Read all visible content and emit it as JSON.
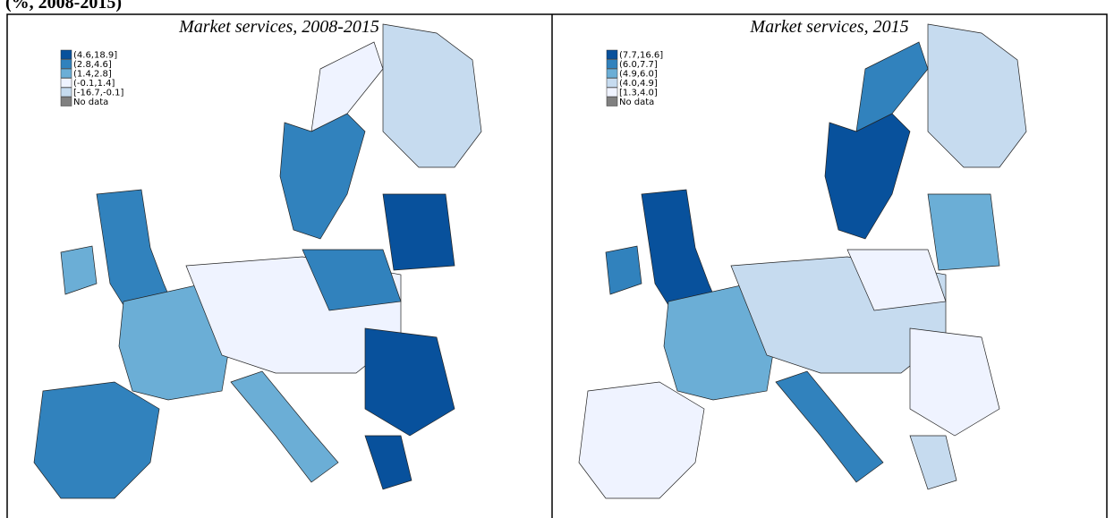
{
  "header": {
    "text": "(%, 2008-2015)"
  },
  "panels": [
    {
      "title": "Market services, 2008-2015",
      "legend": [
        {
          "label": "(4.6,18.9]",
          "color": "#08519c"
        },
        {
          "label": "(2.8,4.6]",
          "color": "#3182bd"
        },
        {
          "label": "(1.4,2.8]",
          "color": "#6baed6"
        },
        {
          "label": "(-0.1,1.4]",
          "color": "#eff3ff"
        },
        {
          "label": "[-16.7,-0.1]",
          "color": "#c6dbef"
        },
        {
          "label": "No data",
          "color": "#808080"
        }
      ]
    },
    {
      "title": "Market services, 2015",
      "legend": [
        {
          "label": "(7.7,16.6]",
          "color": "#08519c"
        },
        {
          "label": "(6.0,7.7]",
          "color": "#3182bd"
        },
        {
          "label": "(4.9,6.0]",
          "color": "#6baed6"
        },
        {
          "label": "(4.0,4.9]",
          "color": "#c6dbef"
        },
        {
          "label": "[1.3,4.0]",
          "color": "#eff3ff"
        },
        {
          "label": "No data",
          "color": "#808080"
        }
      ]
    }
  ]
}
